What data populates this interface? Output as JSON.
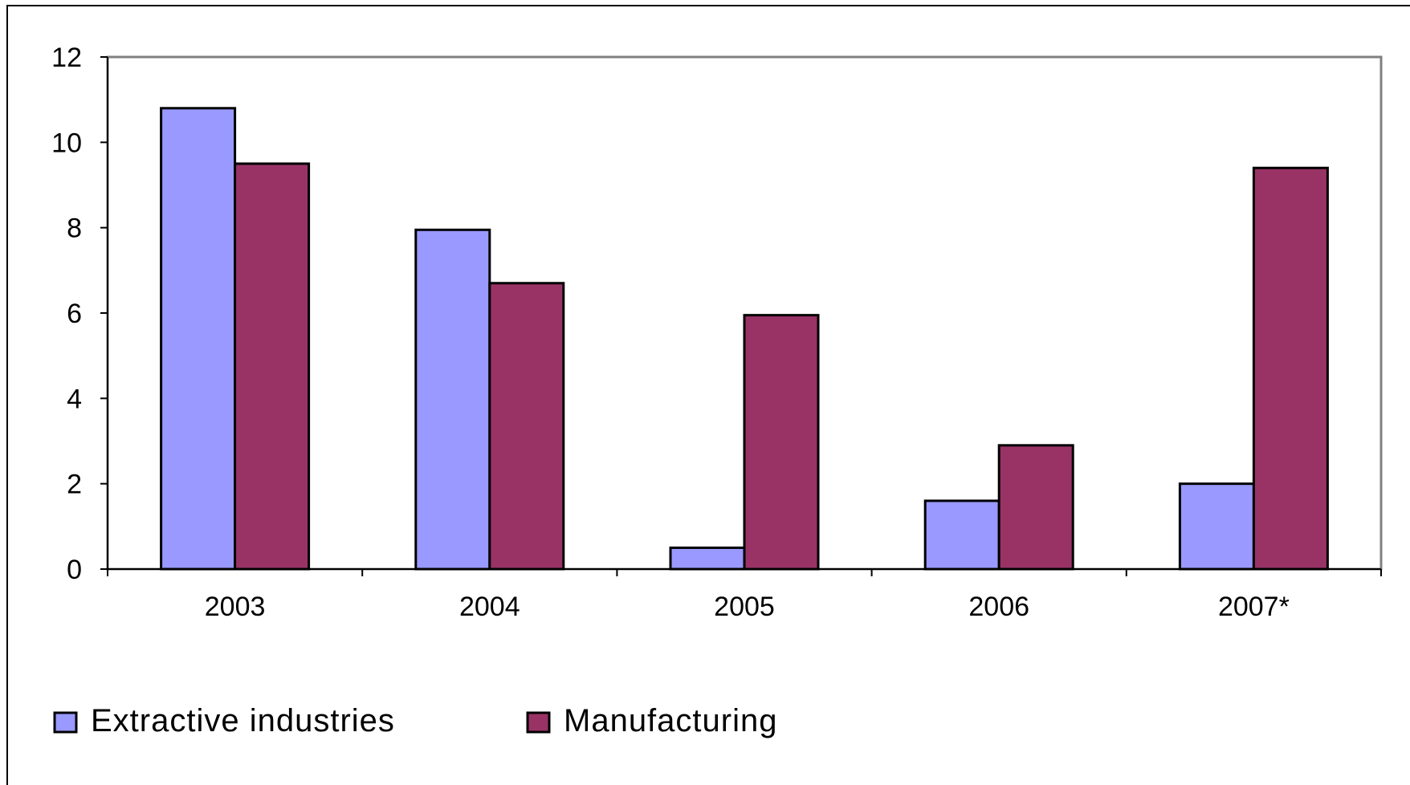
{
  "chart_data": {
    "type": "bar",
    "categories": [
      "2003",
      "2004",
      "2005",
      "2006",
      "2007*"
    ],
    "series": [
      {
        "name": "Extractive industries",
        "values": [
          10.8,
          7.95,
          0.5,
          1.6,
          2.0
        ],
        "color": "#9999ff"
      },
      {
        "name": "Manufacturing",
        "values": [
          9.5,
          6.7,
          5.95,
          2.9,
          9.4
        ],
        "color": "#993366"
      }
    ],
    "yticks": [
      "0",
      "2",
      "4",
      "6",
      "8",
      "10",
      "12"
    ],
    "ylim": [
      0,
      12
    ],
    "legend_position": "bottom-left",
    "grid": false,
    "title": "",
    "xlabel": "",
    "ylabel": ""
  }
}
